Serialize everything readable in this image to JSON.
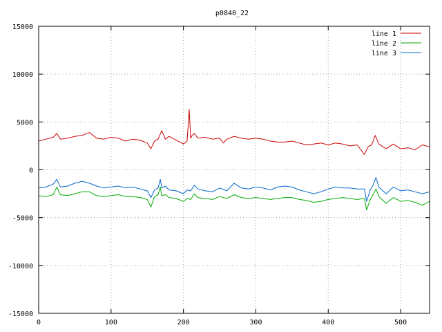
{
  "chart_data": {
    "type": "line",
    "title": "p0840_22",
    "xlabel": "",
    "ylabel": "",
    "xlim": [
      0,
      540
    ],
    "ylim": [
      -15000,
      15000
    ],
    "x_ticks": [
      0,
      100,
      200,
      300,
      400,
      500
    ],
    "y_ticks": [
      -15000,
      -10000,
      -5000,
      0,
      5000,
      10000,
      15000
    ],
    "x_tick_labels": [
      "0",
      "100",
      "200",
      "300",
      "400",
      "500"
    ],
    "y_tick_labels": [
      "-15000",
      "-10000",
      "-5000",
      "0",
      "5000",
      "10000",
      "15000"
    ],
    "grid": true,
    "legend_position": "top-right",
    "series": [
      {
        "name": "line 1",
        "color": "#cc0000",
        "x": [
          0,
          10,
          20,
          25,
          30,
          40,
          50,
          60,
          70,
          80,
          90,
          100,
          110,
          120,
          130,
          140,
          150,
          155,
          160,
          165,
          170,
          175,
          180,
          190,
          200,
          205,
          208,
          210,
          212,
          215,
          220,
          230,
          240,
          250,
          255,
          260,
          270,
          280,
          290,
          300,
          310,
          320,
          330,
          340,
          350,
          360,
          370,
          380,
          390,
          400,
          410,
          420,
          430,
          440,
          450,
          455,
          460,
          465,
          470,
          480,
          490,
          500,
          510,
          520,
          530,
          540
        ],
        "y": [
          3000,
          3200,
          3400,
          3800,
          3200,
          3300,
          3500,
          3600,
          3900,
          3300,
          3200,
          3400,
          3300,
          3000,
          3200,
          3100,
          2800,
          2200,
          3000,
          3200,
          4100,
          3200,
          3500,
          3100,
          2700,
          3000,
          6300,
          3300,
          3600,
          3800,
          3300,
          3400,
          3200,
          3300,
          2800,
          3200,
          3500,
          3300,
          3200,
          3300,
          3200,
          3000,
          2900,
          2900,
          3000,
          2800,
          2600,
          2700,
          2800,
          2600,
          2800,
          2700,
          2500,
          2600,
          1600,
          2400,
          2600,
          3600,
          2700,
          2200,
          2700,
          2200,
          2300,
          2100,
          2600,
          2400
        ]
      },
      {
        "name": "line 2",
        "color": "#00aa00",
        "x": [
          0,
          10,
          20,
          25,
          30,
          40,
          50,
          60,
          70,
          80,
          90,
          100,
          110,
          120,
          130,
          140,
          150,
          155,
          160,
          165,
          168,
          170,
          175,
          180,
          190,
          200,
          205,
          210,
          215,
          220,
          230,
          240,
          250,
          260,
          270,
          280,
          290,
          300,
          310,
          320,
          330,
          340,
          350,
          360,
          370,
          380,
          390,
          400,
          410,
          420,
          430,
          440,
          450,
          453,
          458,
          462,
          466,
          470,
          480,
          490,
          500,
          510,
          520,
          530,
          540
        ],
        "y": [
          -2700,
          -2800,
          -2600,
          -1800,
          -2600,
          -2700,
          -2500,
          -2300,
          -2300,
          -2700,
          -2800,
          -2700,
          -2600,
          -2800,
          -2800,
          -2900,
          -3100,
          -3900,
          -2800,
          -2600,
          -1800,
          -2700,
          -2600,
          -2900,
          -3000,
          -3300,
          -3000,
          -3100,
          -2500,
          -2900,
          -3000,
          -3100,
          -2800,
          -3000,
          -2600,
          -2900,
          -3000,
          -2900,
          -3000,
          -3100,
          -3000,
          -2900,
          -2900,
          -3100,
          -3200,
          -3400,
          -3300,
          -3100,
          -3000,
          -2900,
          -3000,
          -3100,
          -3000,
          -4200,
          -3100,
          -2600,
          -2000,
          -2800,
          -3500,
          -2900,
          -3300,
          -3200,
          -3400,
          -3700,
          -3300
        ]
      },
      {
        "name": "line 3",
        "color": "#0066cc",
        "x": [
          0,
          10,
          20,
          25,
          30,
          40,
          50,
          60,
          70,
          80,
          90,
          100,
          110,
          120,
          130,
          140,
          150,
          155,
          160,
          165,
          168,
          170,
          175,
          180,
          190,
          200,
          205,
          210,
          215,
          220,
          230,
          240,
          250,
          260,
          270,
          280,
          290,
          300,
          310,
          320,
          330,
          340,
          350,
          360,
          370,
          380,
          390,
          400,
          410,
          420,
          430,
          440,
          450,
          453,
          458,
          462,
          466,
          470,
          480,
          490,
          500,
          510,
          520,
          530,
          540
        ],
        "y": [
          -1900,
          -1800,
          -1500,
          -1000,
          -1800,
          -1700,
          -1400,
          -1200,
          -1400,
          -1700,
          -1900,
          -1800,
          -1700,
          -1900,
          -1800,
          -2000,
          -2200,
          -2900,
          -2100,
          -1900,
          -1000,
          -1900,
          -1700,
          -2100,
          -2200,
          -2500,
          -2100,
          -2200,
          -1600,
          -2000,
          -2200,
          -2300,
          -1900,
          -2200,
          -1400,
          -1900,
          -2000,
          -1800,
          -1900,
          -2100,
          -1800,
          -1700,
          -1800,
          -2100,
          -2300,
          -2500,
          -2300,
          -2000,
          -1800,
          -1900,
          -1900,
          -2000,
          -2000,
          -3300,
          -2100,
          -1600,
          -800,
          -1800,
          -2500,
          -1800,
          -2200,
          -2100,
          -2300,
          -2500,
          -2300
        ]
      }
    ]
  }
}
